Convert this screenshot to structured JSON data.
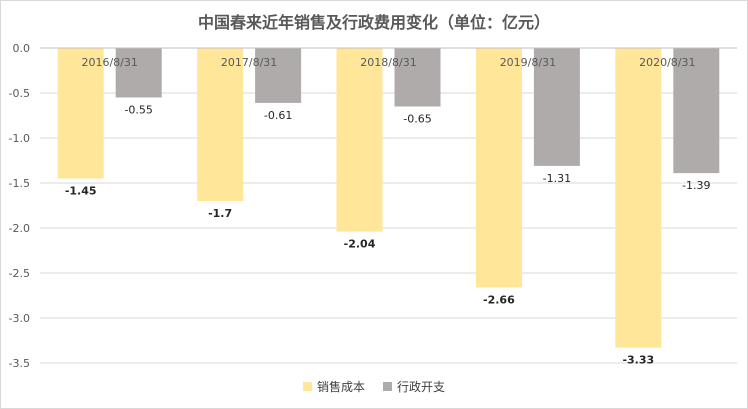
{
  "chart_data": {
    "type": "bar",
    "title": "中国春来近年销售及行政费用变化（单位：亿元）",
    "categories": [
      "2016/8/31",
      "2017/8/31",
      "2018/8/31",
      "2019/8/31",
      "2020/8/31"
    ],
    "series": [
      {
        "name": "销售成本",
        "values": [
          -1.45,
          -1.7,
          -2.04,
          -2.66,
          -3.33
        ],
        "labels": [
          "-1.45",
          "-1.7",
          "-2.04",
          "-2.66",
          "-3.33"
        ],
        "color": "#ffe699",
        "label_bold": true
      },
      {
        "name": "行政开支",
        "values": [
          -0.55,
          -0.61,
          -0.65,
          -1.31,
          -1.39
        ],
        "labels": [
          "-0.55",
          "-0.61",
          "-0.65",
          "-1.31",
          "-1.39"
        ],
        "color": "#afabab",
        "label_bold": false
      }
    ],
    "yticks": [
      "0.0",
      "-0.5",
      "-1.0",
      "-1.5",
      "-2.0",
      "-2.5",
      "-3.0",
      "-3.5"
    ],
    "ytick_values": [
      0,
      -0.5,
      -1.0,
      -1.5,
      -2.0,
      -2.5,
      -3.0,
      -3.5
    ],
    "ylim": [
      -3.5,
      0
    ],
    "grid": true,
    "legend_position": "bottom"
  }
}
